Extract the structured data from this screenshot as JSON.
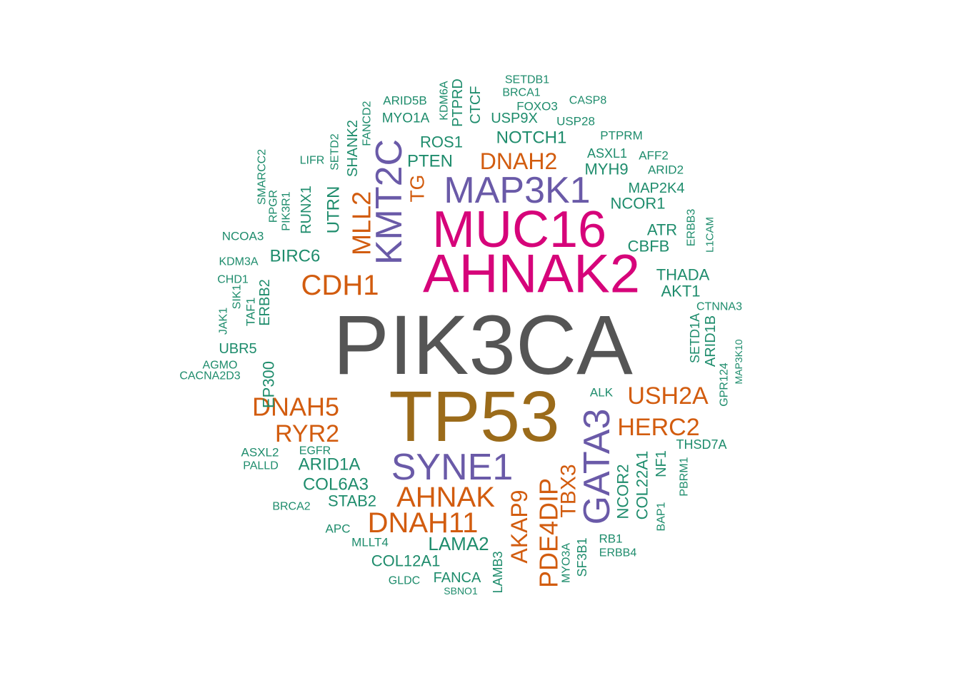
{
  "colors": {
    "gray": "#555555",
    "brown": "#9B6B1A",
    "magenta": "#D6047A",
    "purple": "#6A5AA8",
    "orange": "#D25C0F",
    "green": "#1E8C6C"
  },
  "words": [
    {
      "text": "PIK3CA",
      "color": "gray"
    },
    {
      "text": "TP53",
      "color": "brown"
    },
    {
      "text": "AHNAK2",
      "color": "magenta"
    },
    {
      "text": "MUC16",
      "color": "magenta"
    },
    {
      "text": "KMT2C",
      "color": "purple"
    },
    {
      "text": "MAP3K1",
      "color": "purple"
    },
    {
      "text": "SYNE1",
      "color": "purple"
    },
    {
      "text": "GATA3",
      "color": "purple"
    },
    {
      "text": "CDH1",
      "color": "orange"
    },
    {
      "text": "DNAH2",
      "color": "orange"
    },
    {
      "text": "MLL2",
      "color": "orange"
    },
    {
      "text": "TG",
      "color": "orange"
    },
    {
      "text": "DNAH5",
      "color": "orange"
    },
    {
      "text": "RYR2",
      "color": "orange"
    },
    {
      "text": "USH2A",
      "color": "orange"
    },
    {
      "text": "HERC2",
      "color": "orange"
    },
    {
      "text": "AHNAK",
      "color": "orange"
    },
    {
      "text": "DNAH11",
      "color": "orange"
    },
    {
      "text": "AKAP9",
      "color": "orange"
    },
    {
      "text": "PDE4DIP",
      "color": "orange"
    },
    {
      "text": "TBX3",
      "color": "orange"
    },
    {
      "text": "SETDB1",
      "color": "green"
    },
    {
      "text": "BRCA1",
      "color": "green"
    },
    {
      "text": "CASP8",
      "color": "green"
    },
    {
      "text": "FOXO3",
      "color": "green"
    },
    {
      "text": "ARID5B",
      "color": "green"
    },
    {
      "text": "MYO1A",
      "color": "green"
    },
    {
      "text": "USP9X",
      "color": "green"
    },
    {
      "text": "USP28",
      "color": "green"
    },
    {
      "text": "KDM6A",
      "color": "green"
    },
    {
      "text": "PTPRD",
      "color": "green"
    },
    {
      "text": "CTCF",
      "color": "green"
    },
    {
      "text": "FANCD2",
      "color": "green"
    },
    {
      "text": "SHANK2",
      "color": "green"
    },
    {
      "text": "SETD2",
      "color": "green"
    },
    {
      "text": "NOTCH1",
      "color": "green"
    },
    {
      "text": "ROS1",
      "color": "green"
    },
    {
      "text": "PTPRM",
      "color": "green"
    },
    {
      "text": "PTEN",
      "color": "green"
    },
    {
      "text": "ASXL1",
      "color": "green"
    },
    {
      "text": "AFF2",
      "color": "green"
    },
    {
      "text": "MYH9",
      "color": "green"
    },
    {
      "text": "ARID2",
      "color": "green"
    },
    {
      "text": "LIFR",
      "color": "green"
    },
    {
      "text": "MAP2K4",
      "color": "green"
    },
    {
      "text": "NCOR1",
      "color": "green"
    },
    {
      "text": "SMARCC2",
      "color": "green"
    },
    {
      "text": "RPGR",
      "color": "green"
    },
    {
      "text": "PIK3R1",
      "color": "green"
    },
    {
      "text": "RUNX1",
      "color": "green"
    },
    {
      "text": "UTRN",
      "color": "green"
    },
    {
      "text": "ERBB3",
      "color": "green"
    },
    {
      "text": "L1CAM",
      "color": "green"
    },
    {
      "text": "NCOA3",
      "color": "green"
    },
    {
      "text": "ATR",
      "color": "green"
    },
    {
      "text": "CBFB",
      "color": "green"
    },
    {
      "text": "BIRC6",
      "color": "green"
    },
    {
      "text": "KDM3A",
      "color": "green"
    },
    {
      "text": "CHD1",
      "color": "green"
    },
    {
      "text": "THADA",
      "color": "green"
    },
    {
      "text": "AKT1",
      "color": "green"
    },
    {
      "text": "ERBB2",
      "color": "green"
    },
    {
      "text": "SIK1",
      "color": "green"
    },
    {
      "text": "TAF1",
      "color": "green"
    },
    {
      "text": "JAK1",
      "color": "green"
    },
    {
      "text": "CTNNA3",
      "color": "green"
    },
    {
      "text": "SETD1A",
      "color": "green"
    },
    {
      "text": "ARID1B",
      "color": "green"
    },
    {
      "text": "UBR5",
      "color": "green"
    },
    {
      "text": "MAP3K10",
      "color": "green"
    },
    {
      "text": "GPR124",
      "color": "green"
    },
    {
      "text": "AGMO",
      "color": "green"
    },
    {
      "text": "EP300",
      "color": "green"
    },
    {
      "text": "CACNA2D3",
      "color": "green"
    },
    {
      "text": "ALK",
      "color": "green"
    },
    {
      "text": "THSD7A",
      "color": "green"
    },
    {
      "text": "ASXL2",
      "color": "green"
    },
    {
      "text": "EGFR",
      "color": "green"
    },
    {
      "text": "PALLD",
      "color": "green"
    },
    {
      "text": "ARID1A",
      "color": "green"
    },
    {
      "text": "COL6A3",
      "color": "green"
    },
    {
      "text": "NCOR2",
      "color": "green"
    },
    {
      "text": "COL22A1",
      "color": "green"
    },
    {
      "text": "NF1",
      "color": "green"
    },
    {
      "text": "PBRM1",
      "color": "green"
    },
    {
      "text": "STAB2",
      "color": "green"
    },
    {
      "text": "BRCA2",
      "color": "green"
    },
    {
      "text": "BAP1",
      "color": "green"
    },
    {
      "text": "APC",
      "color": "green"
    },
    {
      "text": "LAMA2",
      "color": "green"
    },
    {
      "text": "RB1",
      "color": "green"
    },
    {
      "text": "ERBB4",
      "color": "green"
    },
    {
      "text": "MLLT4",
      "color": "green"
    },
    {
      "text": "MYO3A",
      "color": "green"
    },
    {
      "text": "SF3B1",
      "color": "green"
    },
    {
      "text": "COL12A1",
      "color": "green"
    },
    {
      "text": "LAMB3",
      "color": "green"
    },
    {
      "text": "GLDC",
      "color": "green"
    },
    {
      "text": "FANCA",
      "color": "green"
    },
    {
      "text": "SBNO1",
      "color": "green"
    }
  ]
}
